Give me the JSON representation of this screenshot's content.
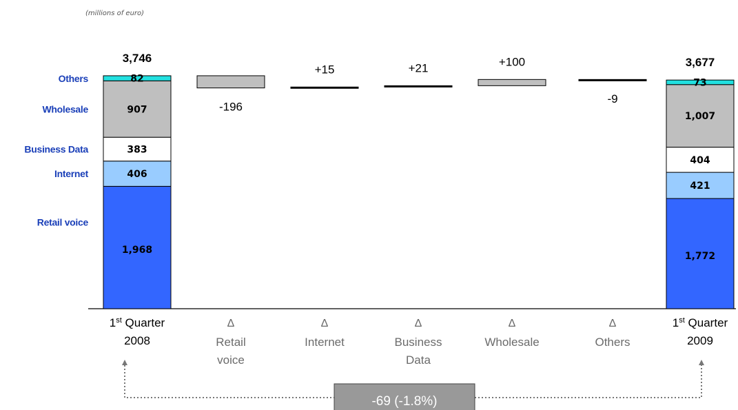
{
  "unit_note": "(millions of euro)",
  "colors": {
    "others": "#22E0E0",
    "wholesale": "#BFBFBF",
    "business_data": "#FFFFFF",
    "internet": "#99CCFF",
    "retail_voice": "#3366FF",
    "label_blue": "#1A3FB8",
    "delta_box": "#BFBFBF",
    "variation_box": "#999999"
  },
  "chart_data": {
    "type": "bar",
    "subtype": "waterfall",
    "stack_order": [
      "Retail voice",
      "Internet",
      "Business Data",
      "Wholesale",
      "Others"
    ],
    "segment_labels": [
      "Others",
      "Wholesale",
      "Business Data",
      "Internet",
      "Retail voice"
    ],
    "start": {
      "label_line1": "1",
      "label_sup": "st",
      "label_line1_rest": " Quarter",
      "label_line2": "2008",
      "total": 3746,
      "total_label": "3,746",
      "segments": [
        {
          "name": "Retail voice",
          "value": 1968,
          "label": "1,968"
        },
        {
          "name": "Internet",
          "value": 406,
          "label": "406"
        },
        {
          "name": "Business Data",
          "value": 383,
          "label": "383"
        },
        {
          "name": "Wholesale",
          "value": 907,
          "label": "907"
        },
        {
          "name": "Others",
          "value": 82,
          "label": "82"
        }
      ]
    },
    "deltas": [
      {
        "symbol": "Δ",
        "lines": [
          "Retail",
          "voice"
        ],
        "value": -196,
        "label": "-196"
      },
      {
        "symbol": "Δ",
        "lines": [
          "Internet"
        ],
        "value": 15,
        "label": "+15"
      },
      {
        "symbol": "Δ",
        "lines": [
          "Business",
          "Data"
        ],
        "value": 21,
        "label": "+21"
      },
      {
        "symbol": "Δ",
        "lines": [
          "Wholesale"
        ],
        "value": 100,
        "label": "+100"
      },
      {
        "symbol": "Δ",
        "lines": [
          "Others"
        ],
        "value": -9,
        "label": "-9"
      }
    ],
    "end": {
      "label_line1": "1",
      "label_sup": "st",
      "label_line1_rest": " Quarter",
      "label_line2": "2009",
      "total": 3677,
      "total_label": "3,677",
      "segments": [
        {
          "name": "Retail voice",
          "value": 1772,
          "label": "1,772"
        },
        {
          "name": "Internet",
          "value": 421,
          "label": "421"
        },
        {
          "name": "Business Data",
          "value": 404,
          "label": "404"
        },
        {
          "name": "Wholesale",
          "value": 1007,
          "label": "1,007"
        },
        {
          "name": "Others",
          "value": 73,
          "label": "73"
        }
      ]
    },
    "variation_label": "-69 (-1.8%)"
  }
}
